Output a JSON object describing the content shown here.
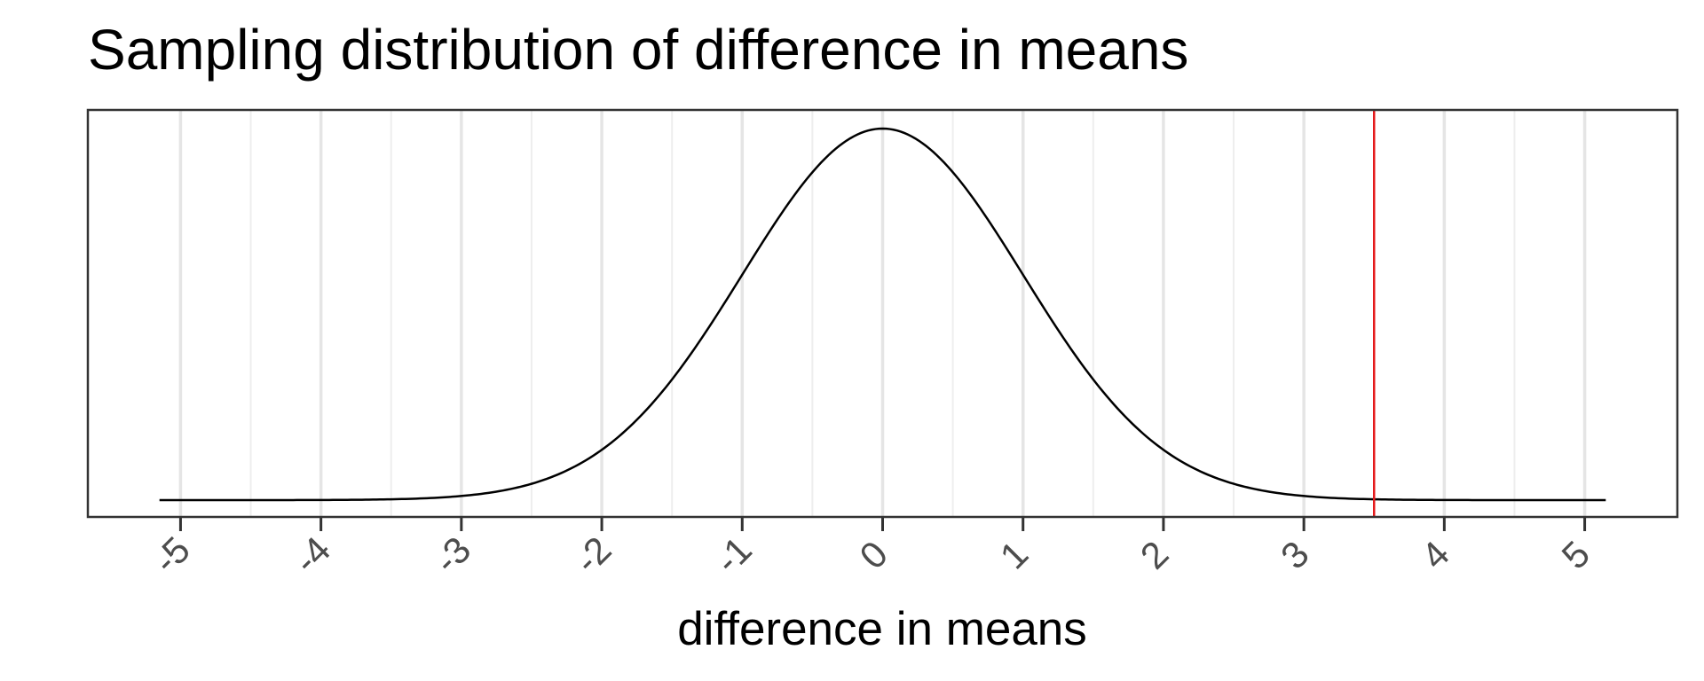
{
  "chart_data": {
    "type": "line",
    "title": "Sampling distribution of difference in means",
    "xlabel": "difference in means",
    "ylabel": "",
    "x_ticks": [
      -5,
      -4,
      -3,
      -2,
      -1,
      0,
      1,
      2,
      3,
      4,
      5
    ],
    "x_tick_labels": [
      "-5",
      "-4",
      "-3",
      "-2",
      "-1",
      "0",
      "1",
      "2",
      "3",
      "4",
      "5"
    ],
    "xlim": [
      -5.66,
      5.66
    ],
    "x_range_curve": [
      -5.15,
      5.15
    ],
    "y_axis_shown": false,
    "grid": "vertical only (major and minor)",
    "legend": "none",
    "series": [
      {
        "distribution": "normal",
        "mean": 0,
        "sd": 1,
        "color": "#000000"
      }
    ],
    "reference_lines": [
      {
        "x": 3.5,
        "orientation": "vertical",
        "color": "#e41a1c"
      }
    ]
  }
}
